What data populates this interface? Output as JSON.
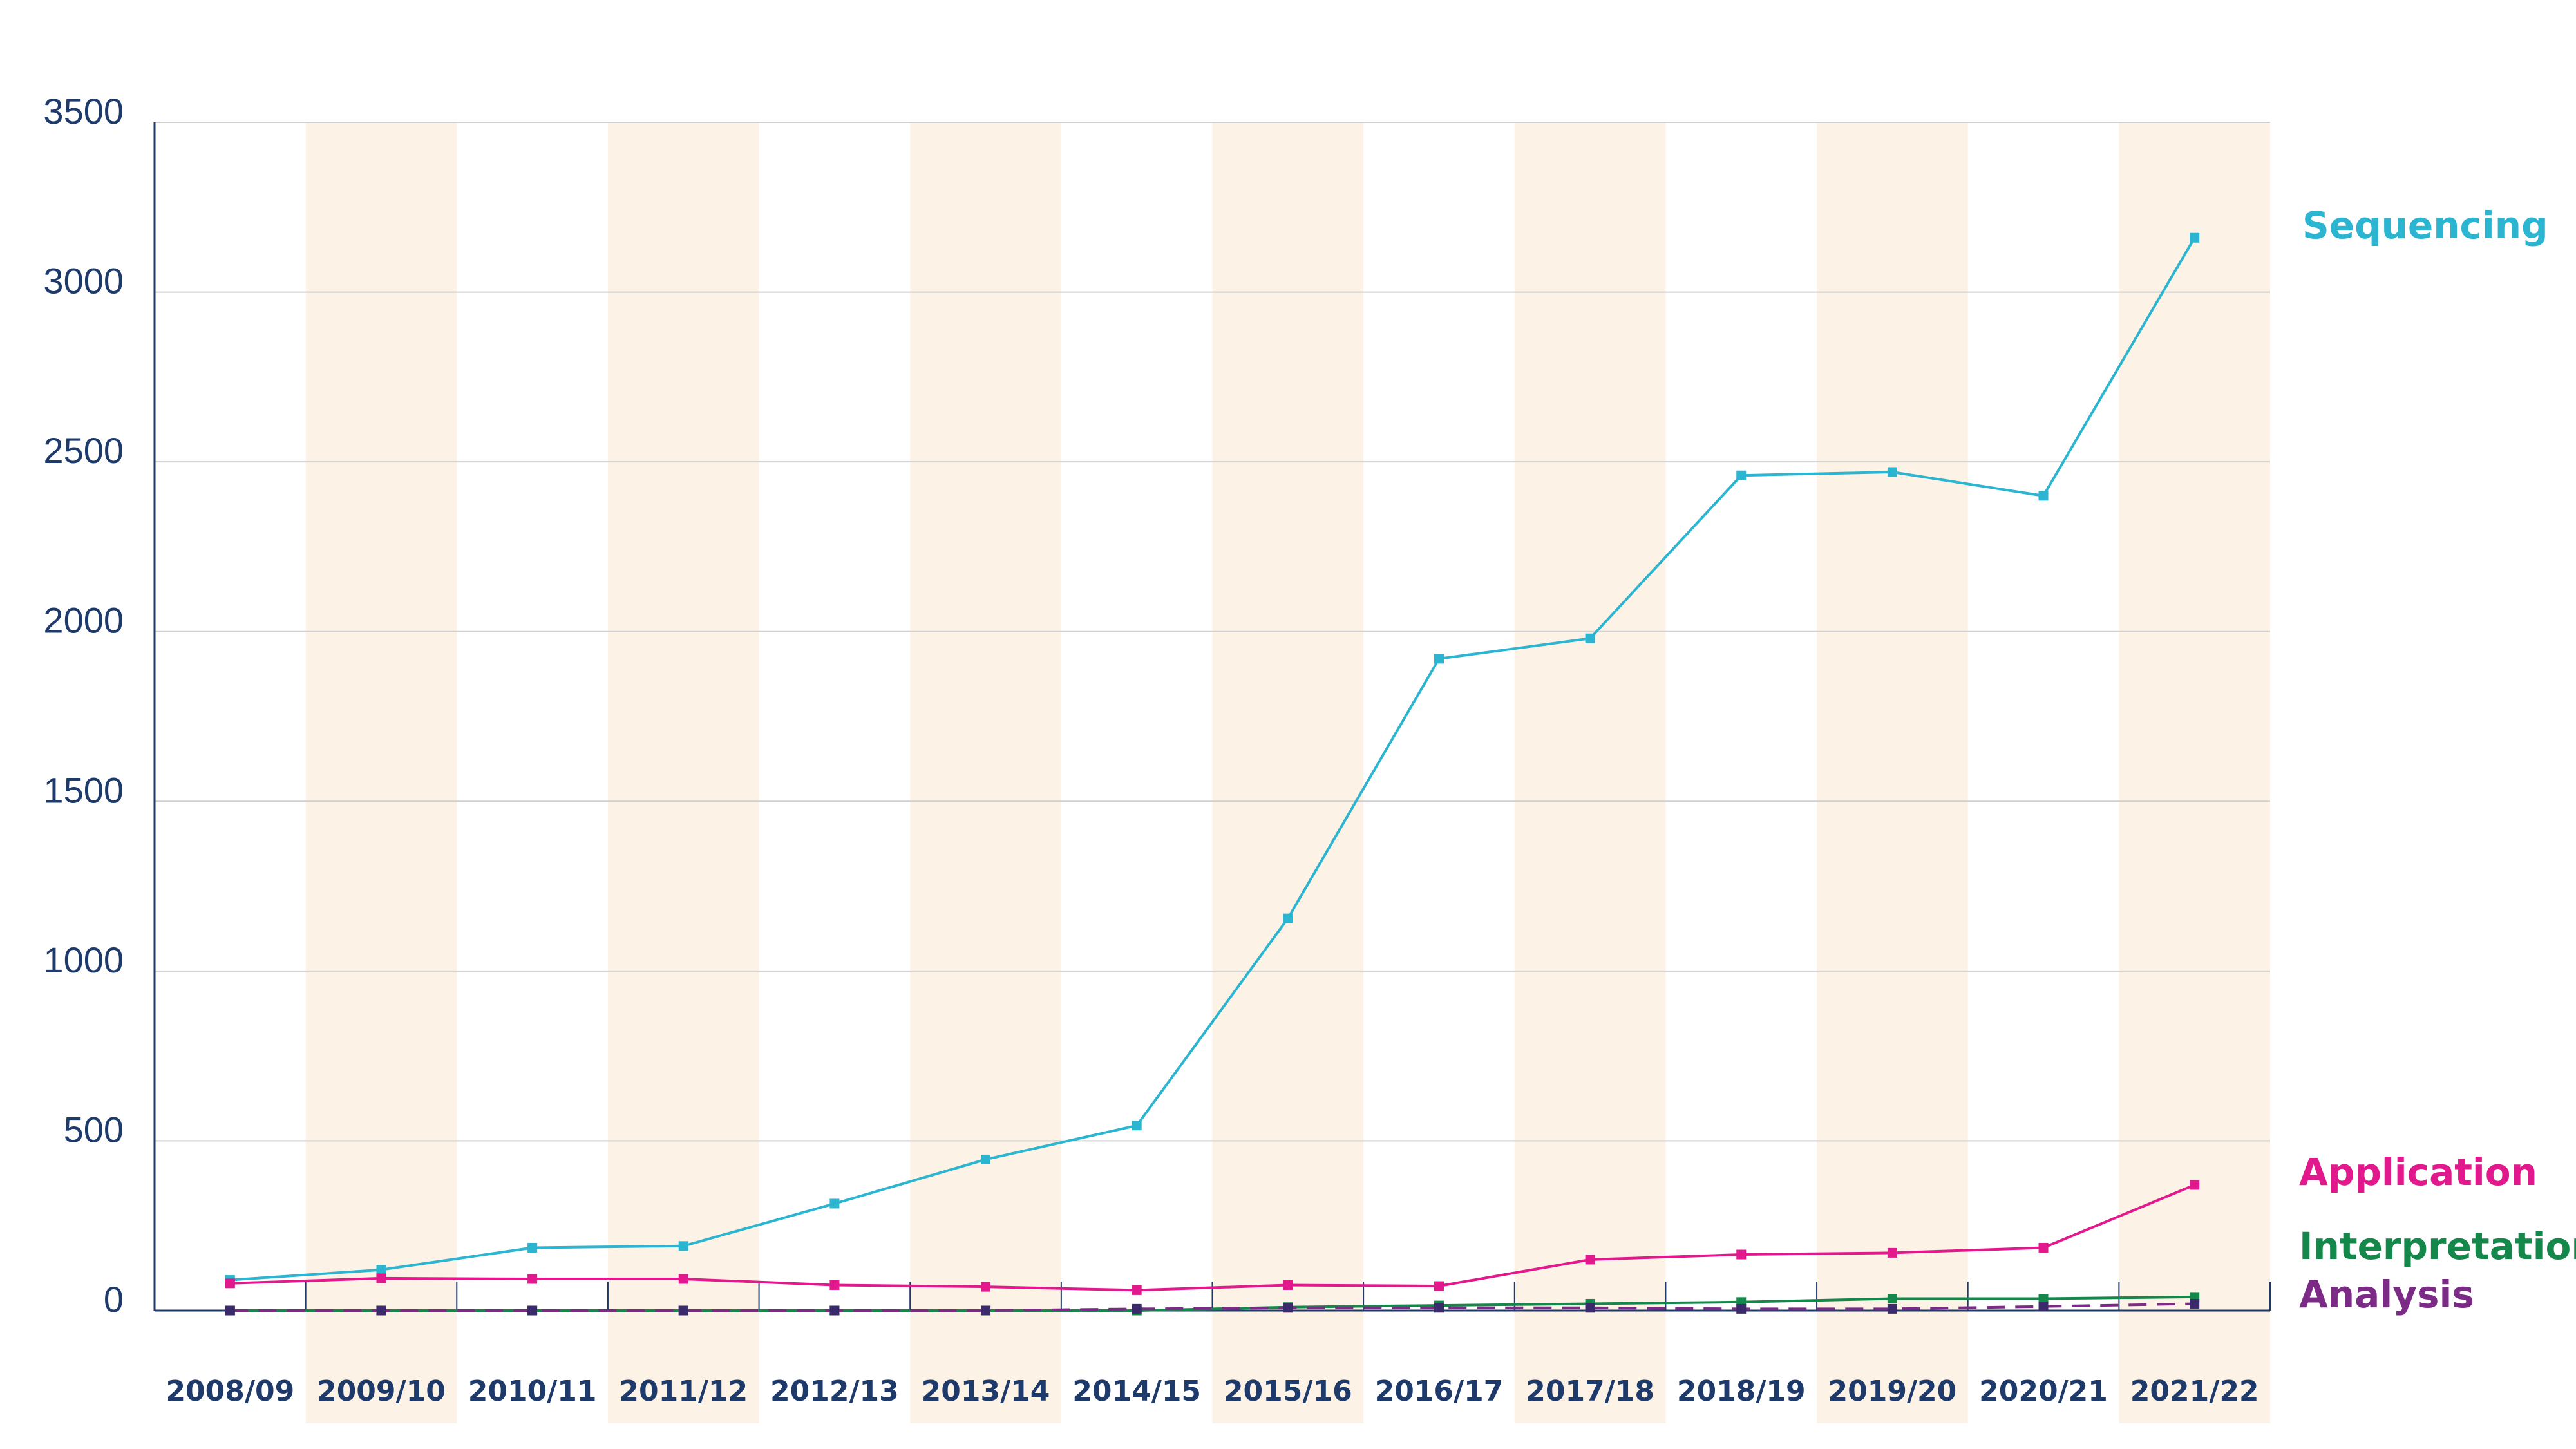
{
  "chart_data": {
    "type": "line",
    "title": "",
    "xlabel": "",
    "ylabel": "",
    "categories": [
      "2008/09",
      "2009/10",
      "2010/11",
      "2011/12",
      "2012/13",
      "2013/14",
      "2014/15",
      "2015/16",
      "2016/17",
      "2017/18",
      "2018/19",
      "2019/20",
      "2020/21",
      "2021/22"
    ],
    "y_ticks": [
      "0",
      "500",
      "1000",
      "1500",
      "2000",
      "2500",
      "3000",
      "3500"
    ],
    "ylim": [
      0,
      3500
    ],
    "grid": true,
    "alternate_column_shading": true,
    "series": [
      {
        "name": "Sequencing",
        "color": "#2cb5d0",
        "dashed": false,
        "values": [
          90,
          120,
          185,
          190,
          315,
          445,
          545,
          1155,
          1920,
          1980,
          2460,
          2470,
          2400,
          3160
        ]
      },
      {
        "name": "Application",
        "color": "#e2198c",
        "dashed": false,
        "values": [
          80,
          95,
          93,
          93,
          75,
          70,
          60,
          75,
          72,
          150,
          165,
          170,
          185,
          370
        ]
      },
      {
        "name": "Interpretation",
        "color": "#14884a",
        "dashed": false,
        "values": [
          0,
          0,
          0,
          0,
          0,
          0,
          0,
          10,
          15,
          20,
          25,
          35,
          35,
          40
        ]
      },
      {
        "name": "Analysis",
        "color": "#7b2a86",
        "dashed": true,
        "values": [
          0,
          0,
          0,
          0,
          0,
          0,
          5,
          8,
          8,
          8,
          5,
          5,
          12,
          20
        ]
      }
    ],
    "colors": {
      "axis": "#1d3a6b",
      "grid": "#cfcfcf",
      "shading": "#fdf2e6",
      "text": "#1d3a6b"
    }
  }
}
